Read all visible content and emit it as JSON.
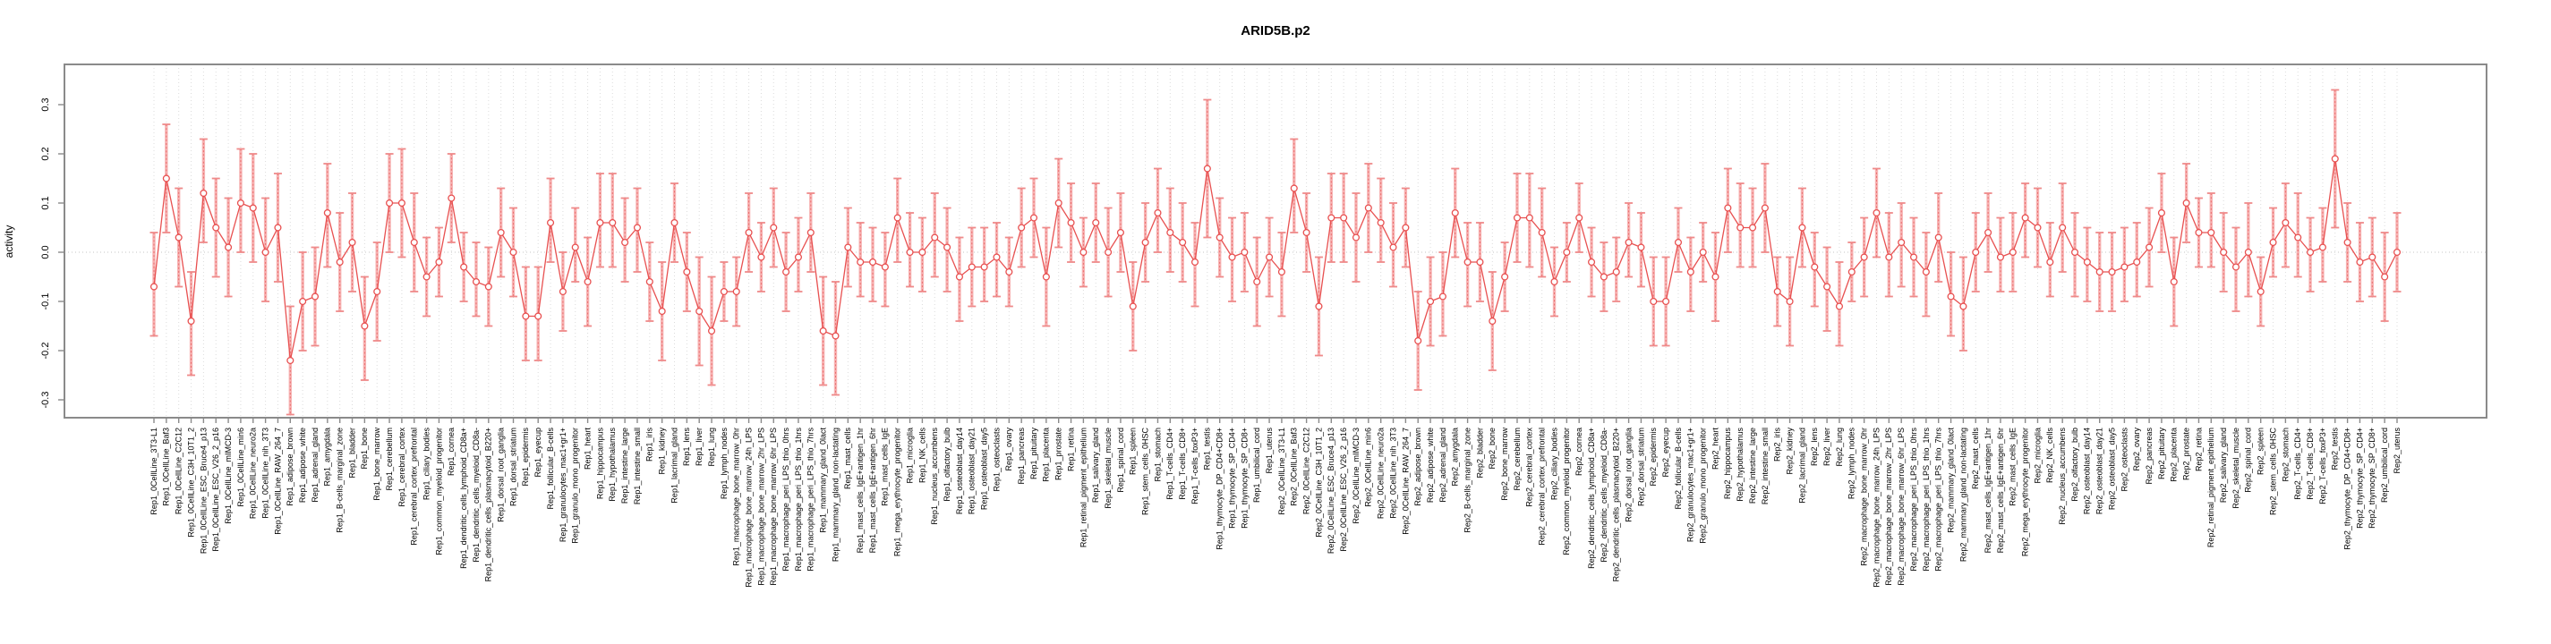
{
  "chart_data": {
    "type": "line",
    "title": "ARID5B.p2",
    "ylabel": "activity",
    "xlabel": "",
    "ylim": [
      -0.345,
      0.38
    ],
    "yticks": [
      -0.3,
      -0.2,
      -0.1,
      0.0,
      0.1,
      0.2,
      0.3
    ],
    "legend": "none",
    "grid": {
      "vertical_per_category": "dotted",
      "zero_line": "dotted"
    },
    "marker": "open-circle",
    "error_bars": true,
    "colors": {
      "line": "#e85050",
      "marker_stroke": "#e85050",
      "error_bar": "#f6abab",
      "error_cap": "#ef8a8a",
      "error_inner_dash": "#e86060",
      "gridline": "#dcdcdc",
      "zero_line": "#c6c6c6",
      "box": "#8a8a8a",
      "tick_text": "#000000",
      "background": "#ffffff"
    },
    "categories": [
      "Rep1_0CellLine_3T3-L1",
      "Rep1_0CellLine_Baf3",
      "Rep1_0CellLine_C2C12",
      "Rep1_0CellLine_C3H_10T1_2",
      "Rep1_0CellLine_ESC_Bruce4_p13",
      "Rep1_0CellLine_ESC_V26_2_p16",
      "Rep1_0CellLine_mIMCD-3",
      "Rep1_0CellLine_min6",
      "Rep1_0CellLine_neuro2a",
      "Rep1_0CellLine_nih_3T3",
      "Rep1_0CellLine_RAW_264_7",
      "Rep1_adipose_brown",
      "Rep1_adipose_white",
      "Rep1_adrenal_gland",
      "Rep1_amygdala",
      "Rep1_B-cells_marginal_zone",
      "Rep1_bladder",
      "Rep1_bone",
      "Rep1_bone_marrow",
      "Rep1_cerebellum",
      "Rep1_cerebral_cortex",
      "Rep1_cerebral_cortex_prefrontal",
      "Rep1_ciliary_bodies",
      "Rep1_common_myeloid_progenitor",
      "Rep1_cornea",
      "Rep1_dendritic_cells_lymphoid_CD8a+",
      "Rep1_dendritic_cells_myeloid_CD8a-",
      "Rep1_dendritic_cells_plasmacytoid_B220+",
      "Rep1_dorsal_root_ganglia",
      "Rep1_dorsal_striatum",
      "Rep1_epidermis",
      "Rep1_eyecup",
      "Rep1_follicular_B-cells",
      "Rep1_granulocytes_mac1+gr1+",
      "Rep1_granulo_mono_progenitor",
      "Rep1_heart",
      "Rep1_hippocampus",
      "Rep1_hypothalamus",
      "Rep1_intestine_large",
      "Rep1_intestine_small",
      "Rep1_iris",
      "Rep1_kidney",
      "Rep1_lacrimal_gland",
      "Rep1_lens",
      "Rep1_liver",
      "Rep1_lung",
      "Rep1_lymph_nodes",
      "Rep1_macrophage_bone_marrow_0hr",
      "Rep1_macrophage_bone_marrow_24h_LPS",
      "Rep1_macrophage_bone_marrow_2hr_LPS",
      "Rep1_macrophage_bone_marrow_6hr_LPS",
      "Rep1_macrophage_peri_LPS_thio_0hrs",
      "Rep1_macrophage_peri_LPS_thio_1hrs",
      "Rep1_macrophage_peri_LPS_thio_7hrs",
      "Rep1_mammary_gland_0lact",
      "Rep1_mammary_gland_non-lactating",
      "Rep1_mast_cells",
      "Rep1_mast_cells_IgE+antigen_1hr",
      "Rep1_mast_cells_IgE+antigen_6hr",
      "Rep1_mast_cells_IgE",
      "Rep1_mega_erythrocyte_progenitor",
      "Rep1_microglia",
      "Rep1_NK_cells",
      "Rep1_nucleus_accumbens",
      "Rep1_olfactory_bulb",
      "Rep1_osteoblast_day14",
      "Rep1_osteoblast_day21",
      "Rep1_osteoblast_day5",
      "Rep1_osteoclasts",
      "Rep1_ovary",
      "Rep1_pancreas",
      "Rep1_pituitary",
      "Rep1_placenta",
      "Rep1_prostate",
      "Rep1_retina",
      "Rep1_retinal_pigment_epithelium",
      "Rep1_salivary_gland",
      "Rep1_skeletal_muscle",
      "Rep1_spinal_cord",
      "Rep1_spleen",
      "Rep1_stem_cells_0HSC",
      "Rep1_stomach",
      "Rep1_T-cells_CD4+",
      "Rep1_T-cells_CD8+",
      "Rep1_T-cells_foxP3+",
      "Rep1_testis",
      "Rep1_thymocyte_DP_CD4+CD8+",
      "Rep1_thymocyte_SP_CD4+",
      "Rep1_thymocyte_SP_CD8+",
      "Rep1_umbilical_cord",
      "Rep1_uterus",
      "Rep2_0CellLine_3T3-L1",
      "Rep2_0CellLine_Baf3",
      "Rep2_0CellLine_C2C12",
      "Rep2_0CellLine_C3H_10T1_2",
      "Rep2_0CellLine_ESC_Bruce4_p13",
      "Rep2_0CellLine_ESC_V26_2_p16",
      "Rep2_0CellLine_mIMCD-3",
      "Rep2_0CellLine_min6",
      "Rep2_0CellLine_neuro2a",
      "Rep2_0CellLine_nih_3T3",
      "Rep2_0CellLine_RAW_264_7",
      "Rep2_adipose_brown",
      "Rep2_adipose_white",
      "Rep2_adrenal_gland",
      "Rep2_amygdala",
      "Rep2_B-cells_marginal_zone",
      "Rep2_bladder",
      "Rep2_bone",
      "Rep2_bone_marrow",
      "Rep2_cerebellum",
      "Rep2_cerebral_cortex",
      "Rep2_cerebral_cortex_prefrontal",
      "Rep2_ciliary_bodies",
      "Rep2_common_myeloid_progenitor",
      "Rep2_cornea",
      "Rep2_dendritic_cells_lymphoid_CD8a+",
      "Rep2_dendritic_cells_myeloid_CD8a-",
      "Rep2_dendritic_cells_plasmacytoid_B220+",
      "Rep2_dorsal_root_ganglia",
      "Rep2_dorsal_striatum",
      "Rep2_epidermis",
      "Rep2_eyecup",
      "Rep2_follicular_B-cells",
      "Rep2_granulocytes_mac1+gr1+",
      "Rep2_granulo_mono_progenitor",
      "Rep2_heart",
      "Rep2_hippocampus",
      "Rep2_hypothalamus",
      "Rep2_intestine_large",
      "Rep2_intestine_small",
      "Rep2_iris",
      "Rep2_kidney",
      "Rep2_lacrimal_gland",
      "Rep2_lens",
      "Rep2_liver",
      "Rep2_lung",
      "Rep2_lymph_nodes",
      "Rep2_macrophage_bone_marrow_0hr",
      "Rep2_macrophage_bone_marrow_24h_LPS",
      "Rep2_macrophage_bone_marrow_2hr_LPS",
      "Rep2_macrophage_bone_marrow_6hr_LPS",
      "Rep2_macrophage_peri_LPS_thio_0hrs",
      "Rep2_macrophage_peri_LPS_thio_1hrs",
      "Rep2_macrophage_peri_LPS_thio_7hrs",
      "Rep2_mammary_gland_0lact",
      "Rep2_mammary_gland_non-lactating",
      "Rep2_mast_cells",
      "Rep2_mast_cells_IgE+antigen_1hr",
      "Rep2_mast_cells_IgE+antigen_6hr",
      "Rep2_mast_cells_IgE",
      "Rep2_mega_erythrocyte_progenitor",
      "Rep2_microglia",
      "Rep2_NK_cells",
      "Rep2_nucleus_accumbens",
      "Rep2_olfactory_bulb",
      "Rep2_osteoblast_day14",
      "Rep2_osteoblast_day21",
      "Rep2_osteoblast_day5",
      "Rep2_osteoclasts",
      "Rep2_ovary",
      "Rep2_pancreas",
      "Rep2_pituitary",
      "Rep2_placenta",
      "Rep2_prostate",
      "Rep2_retina",
      "Rep2_retinal_pigment_epithelium",
      "Rep2_salivary_gland",
      "Rep2_skeletal_muscle",
      "Rep2_spinal_cord",
      "Rep2_spleen",
      "Rep2_stem_cells_0HSC",
      "Rep2_stomach",
      "Rep2_T-cells_CD4+",
      "Rep2_T-cells_CD8+",
      "Rep2_T-cells_foxP3+",
      "Rep2_testis",
      "Rep2_thymocyte_DP_CD4+CD8+",
      "Rep2_thymocyte_SP_CD4+",
      "Rep2_thymocyte_SP_CD8+",
      "Rep2_umbilical_cord",
      "Rep2_uterus"
    ],
    "values": [
      -0.07,
      0.15,
      0.03,
      -0.14,
      0.12,
      0.05,
      0.01,
      0.1,
      0.09,
      0.0,
      0.05,
      -0.22,
      -0.1,
      -0.09,
      0.08,
      -0.02,
      0.02,
      -0.15,
      -0.08,
      0.1,
      0.1,
      0.02,
      -0.05,
      -0.02,
      0.11,
      -0.03,
      -0.06,
      -0.07,
      0.04,
      0.0,
      -0.13,
      -0.13,
      0.06,
      -0.08,
      0.01,
      -0.06,
      0.06,
      0.06,
      0.02,
      0.05,
      -0.06,
      -0.12,
      0.06,
      -0.04,
      -0.12,
      -0.16,
      -0.08,
      -0.08,
      0.04,
      -0.01,
      0.05,
      -0.04,
      -0.01,
      0.04,
      -0.16,
      -0.17,
      0.01,
      -0.02,
      -0.02,
      -0.03,
      0.07,
      0.0,
      0.0,
      0.03,
      0.01,
      -0.05,
      -0.03,
      -0.03,
      -0.01,
      -0.04,
      0.05,
      0.07,
      -0.05,
      0.1,
      0.06,
      0.0,
      0.06,
      0.0,
      0.04,
      -0.11,
      0.02,
      0.08,
      0.04,
      0.02,
      -0.02,
      0.17,
      0.03,
      -0.01,
      0.0,
      -0.06,
      -0.01,
      -0.04,
      0.13,
      0.04,
      -0.11,
      0.07,
      0.07,
      0.03,
      0.09,
      0.06,
      0.01,
      0.05,
      -0.18,
      -0.1,
      -0.09,
      0.08,
      -0.02,
      -0.02,
      -0.14,
      -0.05,
      0.07,
      0.07,
      0.04,
      -0.06,
      0.0,
      0.07,
      -0.02,
      -0.05,
      -0.04,
      0.02,
      0.01,
      -0.1,
      -0.1,
      0.02,
      -0.04,
      0.0,
      -0.05,
      0.09,
      0.05,
      0.05,
      0.09,
      -0.08,
      -0.1,
      0.05,
      -0.03,
      -0.07,
      -0.11,
      -0.04,
      -0.01,
      0.08,
      -0.01,
      0.02,
      -0.01,
      -0.04,
      0.03,
      -0.09,
      -0.11,
      0.0,
      0.04,
      -0.01,
      0.0,
      0.07,
      0.05,
      -0.02,
      0.05,
      0.0,
      -0.02,
      -0.04,
      -0.04,
      -0.03,
      -0.02,
      0.01,
      0.08,
      -0.06,
      0.1,
      0.04,
      0.04,
      0.0,
      -0.03,
      0.0,
      -0.08,
      0.02,
      0.06,
      0.03,
      0.0,
      0.01,
      0.19,
      0.02,
      -0.02,
      -0.01,
      -0.05,
      0.0
    ],
    "ci_low": [
      -0.17,
      0.04,
      -0.07,
      -0.25,
      0.02,
      -0.05,
      -0.09,
      0.0,
      -0.02,
      -0.1,
      -0.06,
      -0.33,
      -0.2,
      -0.19,
      -0.03,
      -0.12,
      -0.08,
      -0.26,
      -0.18,
      0.0,
      -0.01,
      -0.08,
      -0.13,
      -0.09,
      0.02,
      -0.1,
      -0.13,
      -0.15,
      -0.05,
      -0.09,
      -0.22,
      -0.22,
      -0.02,
      -0.16,
      -0.06,
      -0.15,
      -0.03,
      -0.03,
      -0.06,
      -0.04,
      -0.14,
      -0.22,
      -0.02,
      -0.12,
      -0.23,
      -0.27,
      -0.14,
      -0.15,
      -0.04,
      -0.08,
      -0.03,
      -0.12,
      -0.08,
      -0.04,
      -0.27,
      -0.29,
      -0.07,
      -0.09,
      -0.1,
      -0.11,
      -0.02,
      -0.07,
      -0.08,
      -0.05,
      -0.08,
      -0.14,
      -0.11,
      -0.1,
      -0.09,
      -0.11,
      -0.03,
      -0.01,
      -0.15,
      0.01,
      -0.02,
      -0.07,
      -0.02,
      -0.09,
      -0.04,
      -0.2,
      -0.06,
      0.0,
      -0.04,
      -0.06,
      -0.11,
      0.03,
      -0.05,
      -0.1,
      -0.08,
      -0.15,
      -0.09,
      -0.13,
      0.04,
      -0.04,
      -0.21,
      -0.02,
      -0.02,
      -0.06,
      0.0,
      -0.02,
      -0.07,
      -0.03,
      -0.28,
      -0.19,
      -0.17,
      -0.01,
      -0.11,
      -0.1,
      -0.24,
      -0.12,
      -0.02,
      -0.03,
      -0.05,
      -0.13,
      -0.06,
      0.0,
      -0.09,
      -0.12,
      -0.1,
      -0.05,
      -0.07,
      -0.19,
      -0.19,
      -0.04,
      -0.12,
      -0.06,
      -0.14,
      0.0,
      -0.03,
      -0.03,
      0.0,
      -0.15,
      -0.19,
      -0.03,
      -0.11,
      -0.16,
      -0.19,
      -0.1,
      -0.09,
      -0.01,
      -0.09,
      -0.07,
      -0.09,
      -0.13,
      -0.06,
      -0.17,
      -0.2,
      -0.08,
      -0.04,
      -0.08,
      -0.08,
      -0.01,
      -0.03,
      -0.09,
      -0.04,
      -0.09,
      -0.1,
      -0.12,
      -0.12,
      -0.1,
      -0.09,
      -0.07,
      0.0,
      -0.15,
      0.02,
      -0.03,
      -0.03,
      -0.08,
      -0.12,
      -0.09,
      -0.15,
      -0.05,
      -0.03,
      -0.05,
      -0.08,
      -0.06,
      0.05,
      -0.06,
      -0.1,
      -0.09,
      -0.14,
      -0.08
    ],
    "ci_high": [
      0.04,
      0.26,
      0.13,
      -0.04,
      0.23,
      0.15,
      0.11,
      0.21,
      0.2,
      0.11,
      0.16,
      -0.11,
      0.0,
      0.01,
      0.18,
      0.08,
      0.12,
      -0.05,
      0.02,
      0.2,
      0.21,
      0.12,
      0.03,
      0.05,
      0.2,
      0.04,
      0.02,
      0.01,
      0.13,
      0.09,
      -0.03,
      -0.03,
      0.15,
      0.0,
      0.09,
      0.03,
      0.16,
      0.16,
      0.11,
      0.13,
      0.02,
      -0.02,
      0.14,
      0.04,
      -0.01,
      -0.05,
      -0.02,
      -0.01,
      0.12,
      0.06,
      0.13,
      0.04,
      0.07,
      0.12,
      -0.05,
      -0.06,
      0.09,
      0.06,
      0.05,
      0.04,
      0.15,
      0.08,
      0.07,
      0.12,
      0.09,
      0.03,
      0.05,
      0.05,
      0.06,
      0.03,
      0.13,
      0.15,
      0.05,
      0.19,
      0.14,
      0.07,
      0.14,
      0.09,
      0.12,
      -0.02,
      0.1,
      0.17,
      0.13,
      0.1,
      0.06,
      0.31,
      0.11,
      0.07,
      0.08,
      0.03,
      0.07,
      0.04,
      0.23,
      0.12,
      -0.01,
      0.16,
      0.16,
      0.12,
      0.18,
      0.15,
      0.1,
      0.13,
      -0.08,
      -0.01,
      0.0,
      0.17,
      0.06,
      0.06,
      -0.04,
      0.02,
      0.16,
      0.16,
      0.13,
      0.01,
      0.06,
      0.14,
      0.05,
      0.02,
      0.03,
      0.1,
      0.08,
      -0.01,
      -0.01,
      0.09,
      0.03,
      0.06,
      0.04,
      0.17,
      0.14,
      0.13,
      0.18,
      -0.01,
      -0.01,
      0.13,
      0.04,
      0.01,
      -0.02,
      0.02,
      0.07,
      0.17,
      0.08,
      0.1,
      0.07,
      0.04,
      0.12,
      0.0,
      -0.01,
      0.08,
      0.12,
      0.07,
      0.08,
      0.14,
      0.13,
      0.06,
      0.14,
      0.08,
      0.05,
      0.04,
      0.04,
      0.05,
      0.06,
      0.09,
      0.16,
      0.03,
      0.18,
      0.11,
      0.12,
      0.08,
      0.05,
      0.1,
      -0.01,
      0.09,
      0.14,
      0.12,
      0.07,
      0.09,
      0.33,
      0.1,
      0.06,
      0.07,
      0.04,
      0.08
    ]
  }
}
